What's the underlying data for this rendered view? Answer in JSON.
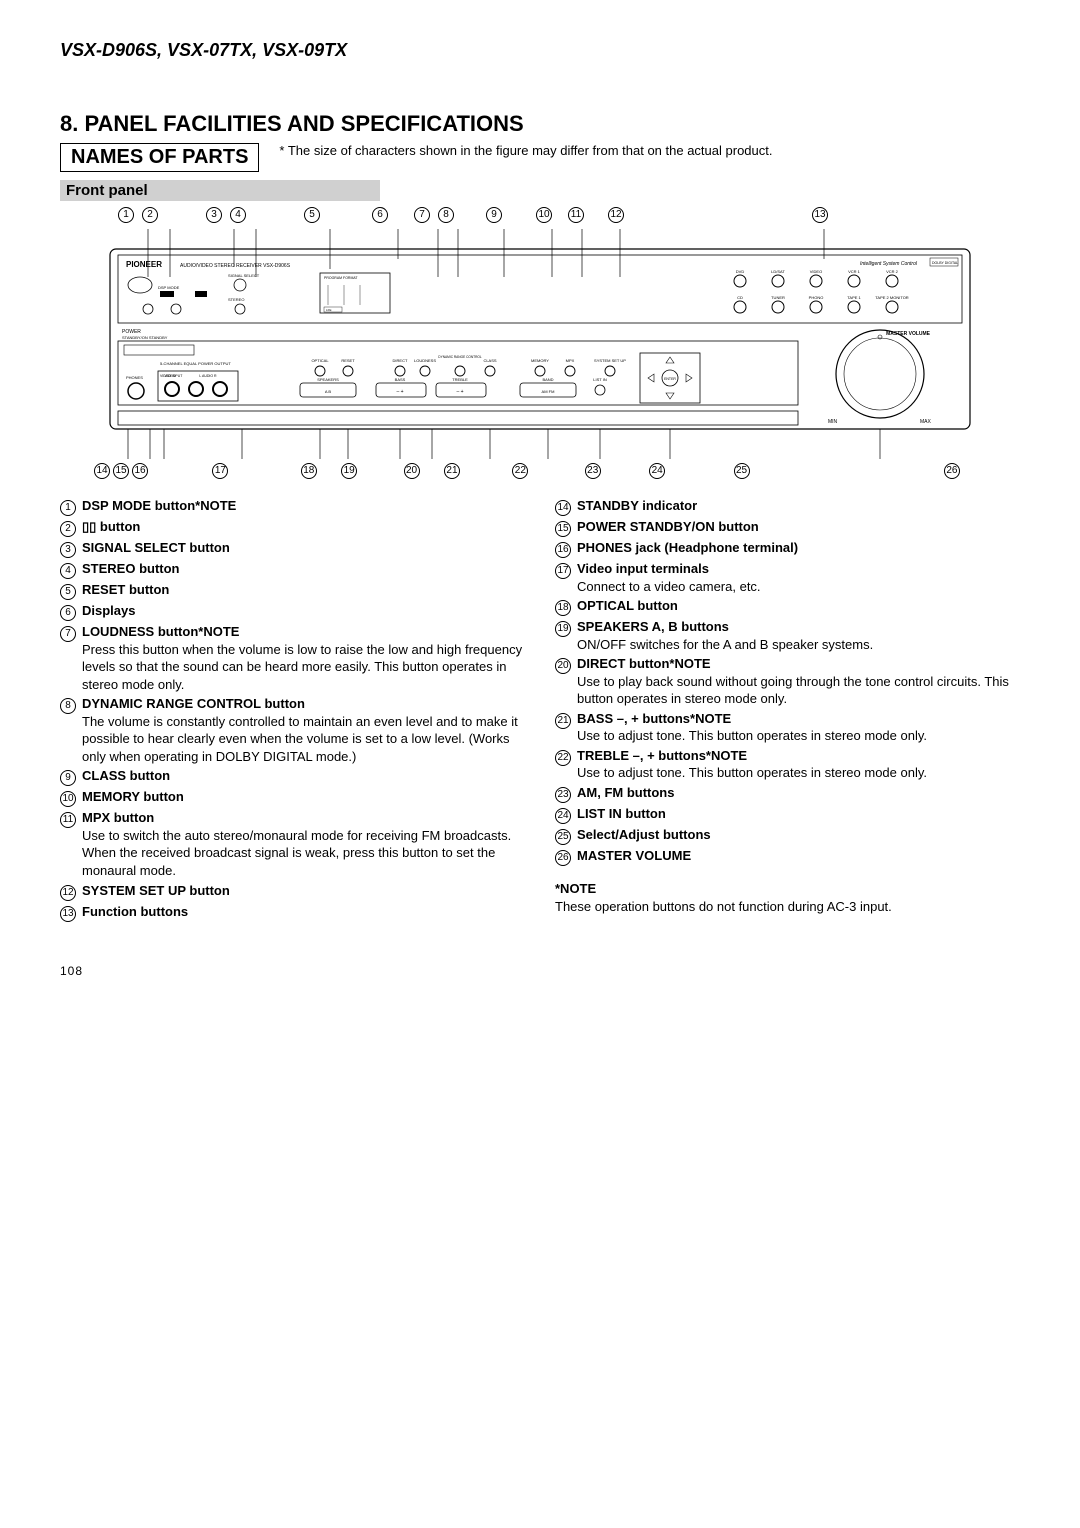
{
  "model_header": "VSX-D906S, VSX-07TX, VSX-09TX",
  "section_title": "8. PANEL FACILITIES AND SPECIFICATIONS",
  "names_box": "NAMES OF PARTS",
  "size_note": "* The size of characters shown in the figure may differ from that on the actual product.",
  "front_panel_label": "Front panel",
  "page_num": "108",
  "panel_text": {
    "brand": "PIONEER",
    "subtitle": "AUDIO/VIDEO STEREO RECEIVER  VSX-D906S",
    "intel": "Intelligent System Control",
    "dolby": "DOLBY DIGITAL",
    "dspmode": "DSP MODE",
    "signal": "SIGNAL SELECT",
    "stereo": "STEREO",
    "power": "POWER",
    "standby": "STANDBY/ON  STANDBY",
    "master": "MASTER VOLUME",
    "min": "MIN",
    "max": "MAX",
    "outline": "5-CHANNEL EQUAL POWER OUTPUT",
    "phones": "PHONES",
    "video_input": "VIDEO INPUT",
    "video": "VIDEO",
    "laudior": "L  AUDIO R",
    "optical": "OPTICAL",
    "reset": "RESET",
    "direct": "DIRECT",
    "loudness": "LOUDNESS",
    "drc": "DYNAMIC RANGE CONTROL",
    "class": "CLASS",
    "memory": "MEMORY",
    "mpx": "MPX",
    "setup": "SYSTEM SET UP",
    "speakers": "SPEAKERS",
    "ab": "A        B",
    "bass": "BASS",
    "treble": "TREBLE",
    "band": "BAND",
    "amfm": "AM       FM",
    "listin": "LIST IN",
    "enter": "ENTER",
    "func_dvd": "DVD",
    "func_ld": "LD/SAT",
    "func_video": "VIDEO",
    "func_vcr1": "VCR 1",
    "func_vcr2": "VCR 2",
    "func_cd": "CD",
    "func_tuner": "TUNER",
    "func_phono": "PHONO",
    "func_tape1": "TAPE 1",
    "func_tape2": "TAPE 2 MONITOR",
    "lfe": "LFE"
  },
  "top_callouts": [
    "1",
    "2",
    "3",
    "4",
    "5",
    "6",
    "7",
    "8",
    "9",
    "10",
    "11",
    "12",
    "13"
  ],
  "bottom_callouts": [
    "14",
    "15",
    "16",
    "17",
    "18",
    "19",
    "20",
    "21",
    "22",
    "23",
    "24",
    "25",
    "26"
  ],
  "parts_left": [
    {
      "n": "1",
      "t": "DSP MODE button*NOTE"
    },
    {
      "n": "2",
      "t": "▯▯ button"
    },
    {
      "n": "3",
      "t": "SIGNAL SELECT button"
    },
    {
      "n": "4",
      "t": "STEREO button"
    },
    {
      "n": "5",
      "t": "RESET button"
    },
    {
      "n": "6",
      "t": "Displays"
    },
    {
      "n": "7",
      "t": "LOUDNESS button*NOTE",
      "d": "Press this button when the volume is low to raise the low and high frequency levels so that the sound can be heard more easily. This button operates in stereo mode only."
    },
    {
      "n": "8",
      "t": "DYNAMIC RANGE CONTROL button",
      "d": "The volume is constantly controlled to maintain an even level and to make it possible to hear clearly even when the volume is set to a low level. (Works only when operating in DOLBY DIGITAL mode.)"
    },
    {
      "n": "9",
      "t": "CLASS button"
    },
    {
      "n": "10",
      "t": "MEMORY button"
    },
    {
      "n": "11",
      "t": "MPX button",
      "d": "Use to switch the auto stereo/monaural mode for receiving FM broadcasts. When the received broadcast signal is weak, press this button to set the monaural mode."
    },
    {
      "n": "12",
      "t": "SYSTEM SET UP button"
    },
    {
      "n": "13",
      "t": "Function buttons"
    }
  ],
  "parts_right": [
    {
      "n": "14",
      "t": "STANDBY indicator"
    },
    {
      "n": "15",
      "t": "POWER STANDBY/ON button"
    },
    {
      "n": "16",
      "t": "PHONES jack (Headphone terminal)"
    },
    {
      "n": "17",
      "t": "Video input terminals",
      "d": "Connect to a video camera, etc."
    },
    {
      "n": "18",
      "t": "OPTICAL button"
    },
    {
      "n": "19",
      "t": "SPEAKERS A, B buttons",
      "d": "ON/OFF switches for the A and B speaker systems."
    },
    {
      "n": "20",
      "t": "DIRECT button*NOTE",
      "d": "Use to play back sound without going through the tone control circuits. This button operates in stereo mode only."
    },
    {
      "n": "21",
      "t": "BASS –, + buttons*NOTE",
      "d": "Use to adjust tone. This button operates in stereo mode only."
    },
    {
      "n": "22",
      "t": "TREBLE –, + buttons*NOTE",
      "d": "Use to adjust tone. This button operates in stereo mode only."
    },
    {
      "n": "23",
      "t": "AM, FM buttons"
    },
    {
      "n": "24",
      "t": "LIST IN button"
    },
    {
      "n": "25",
      "t": "Select/Adjust buttons"
    },
    {
      "n": "26",
      "t": "MASTER VOLUME"
    }
  ],
  "note_title": "*NOTE",
  "note_body": "These operation buttons do not function during AC-3 input."
}
